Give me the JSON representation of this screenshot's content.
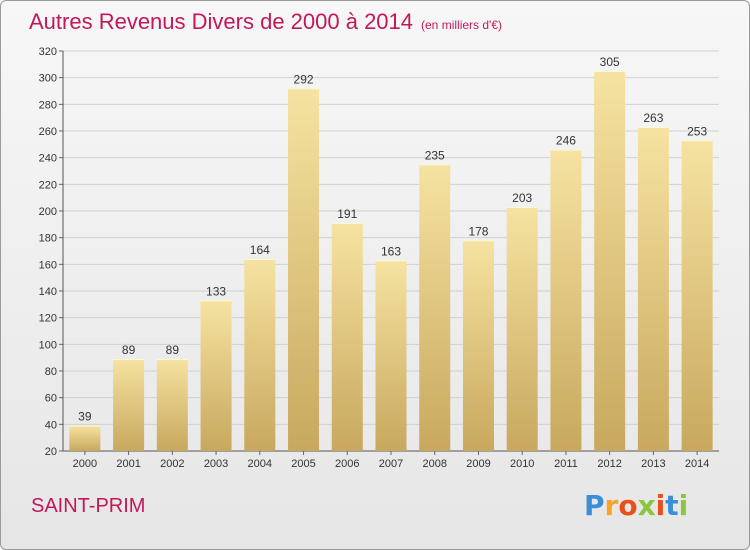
{
  "header": {
    "title": "Autres Revenus Divers de 2000 à 2014",
    "subtitle": "(en milliers d'€)"
  },
  "footer": {
    "place": "SAINT-PRIM",
    "logo": "Proxiti",
    "logo_colors": [
      "#3b8fd9",
      "#f5a623",
      "#e94e1b",
      "#8cc63f",
      "#e94e1b",
      "#3b8fd9",
      "#8cc63f"
    ]
  },
  "colors": {
    "bar_light": "#f6e3a1",
    "bar_dark": "#c8a85e",
    "title": "#c2185b",
    "grid": "#d0d0d0"
  },
  "chart_data": {
    "type": "bar",
    "title": "Autres Revenus Divers de 2000 à 2014",
    "subtitle": "(en milliers d'€)",
    "categories": [
      "2000",
      "2001",
      "2002",
      "2003",
      "2004",
      "2005",
      "2006",
      "2007",
      "2008",
      "2009",
      "2010",
      "2011",
      "2012",
      "2013",
      "2014"
    ],
    "values": [
      39,
      89,
      89,
      133,
      164,
      292,
      191,
      163,
      235,
      178,
      203,
      246,
      305,
      263,
      253
    ],
    "ylim": [
      20,
      320
    ],
    "yticks": [
      20,
      40,
      60,
      80,
      100,
      120,
      140,
      160,
      180,
      200,
      220,
      240,
      260,
      280,
      300,
      320
    ],
    "grid": true,
    "data_labels": true
  }
}
